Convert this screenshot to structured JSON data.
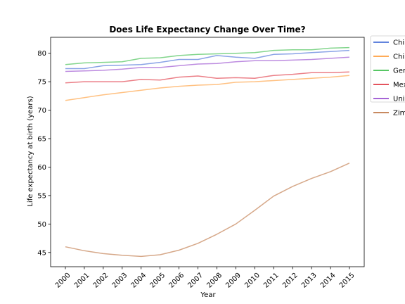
{
  "chart_data": {
    "type": "line",
    "title": "Does Life Expectancy Change Over Time?",
    "xlabel": "Year",
    "ylabel": "Life expectancy at birth (years)",
    "x": [
      "2000",
      "2001",
      "2002",
      "2003",
      "2004",
      "2005",
      "2006",
      "2007",
      "2008",
      "2009",
      "2010",
      "2011",
      "2012",
      "2013",
      "2014",
      "2015"
    ],
    "ylim": [
      42.5,
      82.8
    ],
    "yticks": [
      45,
      50,
      55,
      60,
      65,
      70,
      75,
      80
    ],
    "grid": false,
    "legend_position": "outside-right",
    "series": [
      {
        "name": "Chi",
        "color": "#4c72d8",
        "values": [
          77.3,
          77.3,
          77.8,
          77.9,
          78.0,
          78.4,
          78.9,
          78.9,
          79.6,
          79.3,
          79.1,
          79.8,
          79.9,
          80.1,
          80.3,
          80.5
        ]
      },
      {
        "name": "Chi",
        "color": "#ff9f3f",
        "values": [
          71.7,
          72.2,
          72.7,
          73.1,
          73.5,
          73.9,
          74.2,
          74.4,
          74.5,
          74.9,
          75.0,
          75.2,
          75.4,
          75.6,
          75.8,
          76.1
        ]
      },
      {
        "name": "Ger",
        "color": "#3fbf4f",
        "values": [
          78.0,
          78.3,
          78.4,
          78.5,
          79.1,
          79.2,
          79.6,
          79.8,
          79.9,
          80.0,
          80.1,
          80.5,
          80.6,
          80.6,
          80.9,
          81.0
        ]
      },
      {
        "name": "Mex",
        "color": "#e03b47",
        "values": [
          74.8,
          75.0,
          75.0,
          75.0,
          75.4,
          75.3,
          75.8,
          76.0,
          75.6,
          75.7,
          75.6,
          76.1,
          76.3,
          76.6,
          76.6,
          76.7
        ]
      },
      {
        "name": "Uni",
        "color": "#9a4fd0",
        "values": [
          76.8,
          76.9,
          77.0,
          77.2,
          77.5,
          77.5,
          77.8,
          78.1,
          78.2,
          78.5,
          78.7,
          78.7,
          78.8,
          78.9,
          79.1,
          79.3
        ]
      },
      {
        "name": "Zim",
        "color": "#c07a4a",
        "values": [
          46.0,
          45.3,
          44.8,
          44.5,
          44.3,
          44.6,
          45.4,
          46.6,
          48.2,
          50.0,
          52.4,
          54.9,
          56.6,
          58.0,
          59.2,
          60.7
        ]
      }
    ]
  }
}
